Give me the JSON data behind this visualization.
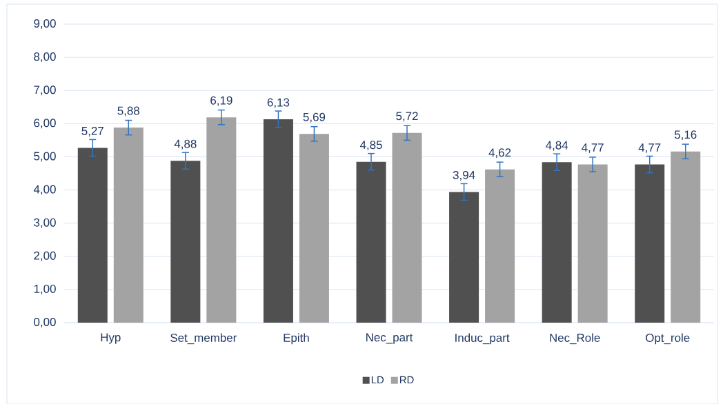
{
  "chart_data": {
    "type": "bar",
    "categories": [
      "Hyp",
      "Set_member",
      "Epith",
      "Nec_part",
      "Induc_part",
      "Nec_Role",
      "Opt_role"
    ],
    "series": [
      {
        "name": "LD",
        "color": "#505050",
        "values": [
          5.27,
          4.88,
          6.13,
          4.85,
          3.94,
          4.84,
          4.77
        ],
        "errors": [
          0.25,
          0.25,
          0.25,
          0.25,
          0.25,
          0.25,
          0.25
        ],
        "value_labels": [
          "5,27",
          "4,88",
          "6,13",
          "4,85",
          "3,94",
          "4,84",
          "4,77"
        ]
      },
      {
        "name": "RD",
        "color": "#a3a3a3",
        "values": [
          5.88,
          6.19,
          5.69,
          5.72,
          4.62,
          4.77,
          5.16
        ],
        "errors": [
          0.22,
          0.22,
          0.22,
          0.22,
          0.22,
          0.22,
          0.22
        ],
        "value_labels": [
          "5,88",
          "6,19",
          "5,69",
          "5,72",
          "4,62",
          "4,77",
          "5,16"
        ]
      }
    ],
    "ylim": [
      0,
      9
    ],
    "yticks": [
      {
        "value": 0,
        "label": "0,00"
      },
      {
        "value": 1,
        "label": "1,00"
      },
      {
        "value": 2,
        "label": "2,00"
      },
      {
        "value": 3,
        "label": "3,00"
      },
      {
        "value": 4,
        "label": "4,00"
      },
      {
        "value": 5,
        "label": "5,00"
      },
      {
        "value": 6,
        "label": "6,00"
      },
      {
        "value": 7,
        "label": "7,00"
      },
      {
        "value": 8,
        "label": "8,00"
      },
      {
        "value": 9,
        "label": "9,00"
      }
    ],
    "grid": "y",
    "legend": "bottom"
  }
}
